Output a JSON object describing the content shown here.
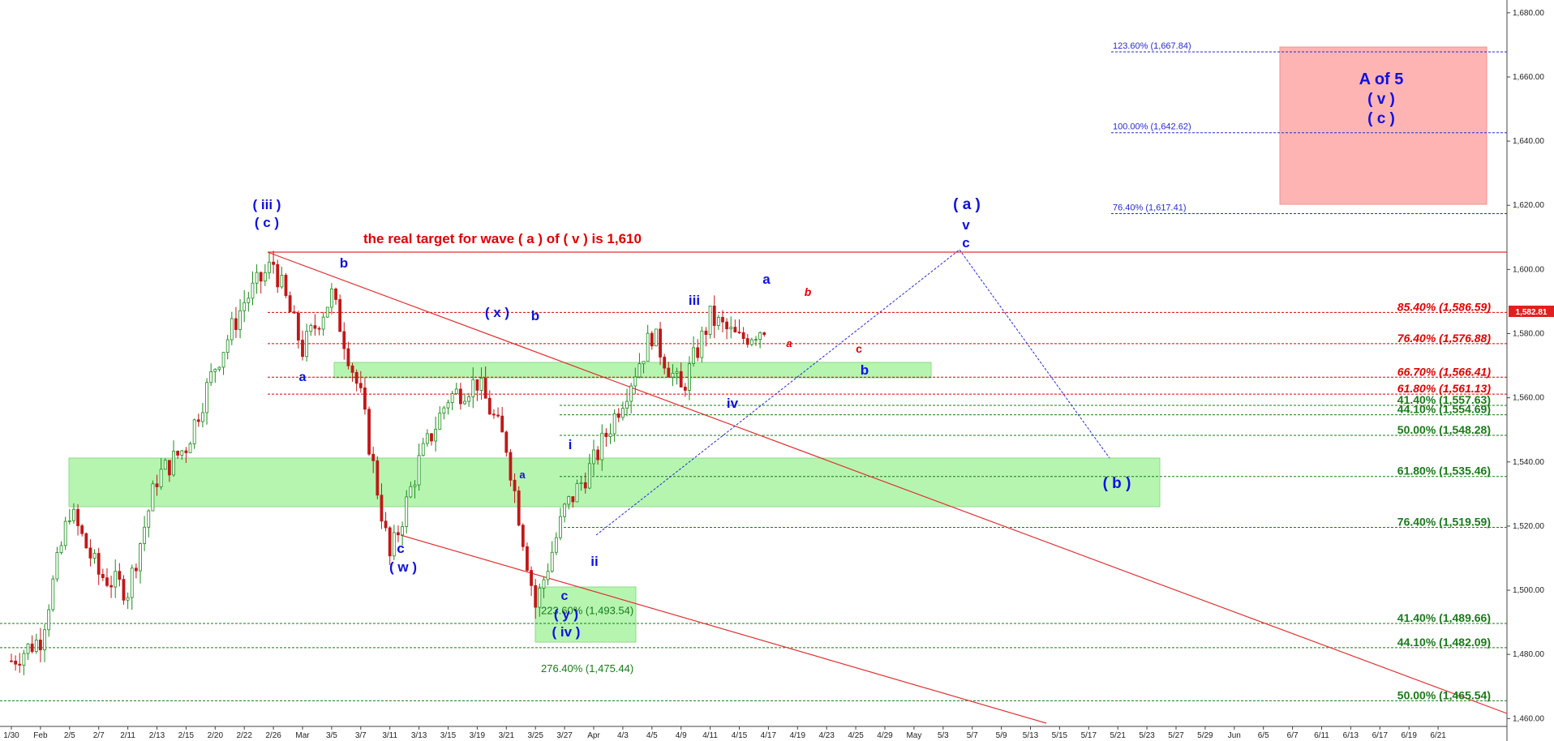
{
  "chart_data": {
    "type": "candlestick",
    "x_ticks": [
      "1/30",
      "Feb",
      "2/5",
      "2/7",
      "2/11",
      "2/13",
      "2/15",
      "2/20",
      "2/22",
      "2/26",
      "Mar",
      "3/5",
      "3/7",
      "3/11",
      "3/13",
      "3/15",
      "3/19",
      "3/21",
      "3/25",
      "3/27",
      "Apr",
      "4/3",
      "4/5",
      "4/9",
      "4/11",
      "4/15",
      "4/17",
      "4/19",
      "4/23",
      "4/25",
      "4/29",
      "May",
      "5/3",
      "5/7",
      "5/9",
      "5/13",
      "5/15",
      "5/17",
      "5/21",
      "5/23",
      "5/27",
      "5/29",
      "Jun",
      "6/5",
      "6/7",
      "6/11",
      "6/13",
      "6/17",
      "6/19",
      "6/21"
    ],
    "y_ticks": [
      "1,460.00",
      "1,480.00",
      "1,500.00",
      "1,520.00",
      "1,540.00",
      "1,560.00",
      "1,580.00",
      "1,600.00",
      "1,620.00",
      "1,640.00",
      "1,660.00",
      "1,680.00"
    ],
    "ylim": [
      1453,
      1684
    ],
    "last_price": "1,582.81",
    "price_series": [
      [
        "1/30",
        1478
      ],
      [
        "Feb",
        1485
      ],
      [
        "2/5",
        1525
      ],
      [
        "2/7",
        1505
      ],
      [
        "2/11",
        1500
      ],
      [
        "2/13",
        1535
      ],
      [
        "2/15",
        1545
      ],
      [
        "2/20",
        1570
      ],
      [
        "2/22",
        1590
      ],
      [
        "2/26",
        1602
      ],
      [
        "Mar",
        1575
      ],
      [
        "3/5",
        1592
      ],
      [
        "3/7",
        1560
      ],
      [
        "3/11",
        1510
      ],
      [
        "3/13",
        1540
      ],
      [
        "3/15",
        1560
      ],
      [
        "3/19",
        1565
      ],
      [
        "3/21",
        1545
      ],
      [
        "3/25",
        1495
      ],
      [
        "3/27",
        1525
      ],
      [
        "Apr",
        1540
      ],
      [
        "4/3",
        1560
      ],
      [
        "4/5",
        1580
      ],
      [
        "4/9",
        1562
      ],
      [
        "4/11",
        1585
      ],
      [
        "4/15",
        1578
      ],
      [
        "4/17",
        1583
      ]
    ],
    "horizontal_levels": [
      {
        "label": "85.40% (1,586.59)",
        "value": 1586.59,
        "color": "#e00000"
      },
      {
        "label": "76.40% (1,576.88)",
        "value": 1576.88,
        "color": "#e00000"
      },
      {
        "label": "66.70% (1,566.41)",
        "value": 1566.41,
        "color": "#e00000"
      },
      {
        "label": "61.80% (1,561.13)",
        "value": 1561.13,
        "color": "#e00000"
      },
      {
        "label": "41.40% (1,557.63)",
        "value": 1557.63,
        "color": "#1a7a1a"
      },
      {
        "label": "44.10% (1,554.69)",
        "value": 1554.69,
        "color": "#1a7a1a"
      },
      {
        "label": "50.00% (1,548.28)",
        "value": 1548.28,
        "color": "#1a7a1a"
      },
      {
        "label": "61.80% (1,535.46)",
        "value": 1535.46,
        "color": "#1a7a1a"
      },
      {
        "label": "76.40% (1,519.59)",
        "value": 1519.59,
        "color": "#1a7a1a"
      },
      {
        "label": "41.40% (1,489.66)",
        "value": 1489.66,
        "color": "#1a7a1a"
      },
      {
        "label": "44.10% (1,482.09)",
        "value": 1482.09,
        "color": "#1a7a1a"
      },
      {
        "label": "50.00% (1,465.54)",
        "value": 1465.54,
        "color": "#1a7a1a"
      }
    ],
    "target_levels": [
      {
        "label": "123.60% (1,667.84)",
        "value": 1667.84
      },
      {
        "label": "100.00% (1,642.62)",
        "value": 1642.62
      },
      {
        "label": "76.40% (1,617.41)",
        "value": 1617.41
      }
    ],
    "extension_labels": [
      {
        "label": "223.60% (1,493.54)",
        "value": 1493.54
      },
      {
        "label": "276.40% (1,475.44)",
        "value": 1475.44
      }
    ],
    "resistance_value": 1602,
    "annotation_title": "the real target for wave ( a ) of ( v ) is 1,610",
    "target_box_text": [
      "A of 5",
      "( v )",
      "( c )"
    ],
    "wave_labels": [
      "( iii )",
      "( c )",
      "b",
      "a",
      "( x )",
      "b",
      "c",
      "( w )",
      "a",
      "c",
      "( y )",
      "( iv )",
      "i",
      "ii",
      "iii",
      "iv",
      "a",
      "b",
      "a",
      "c",
      "b",
      "( a )",
      "v",
      "c",
      "( b )"
    ]
  }
}
